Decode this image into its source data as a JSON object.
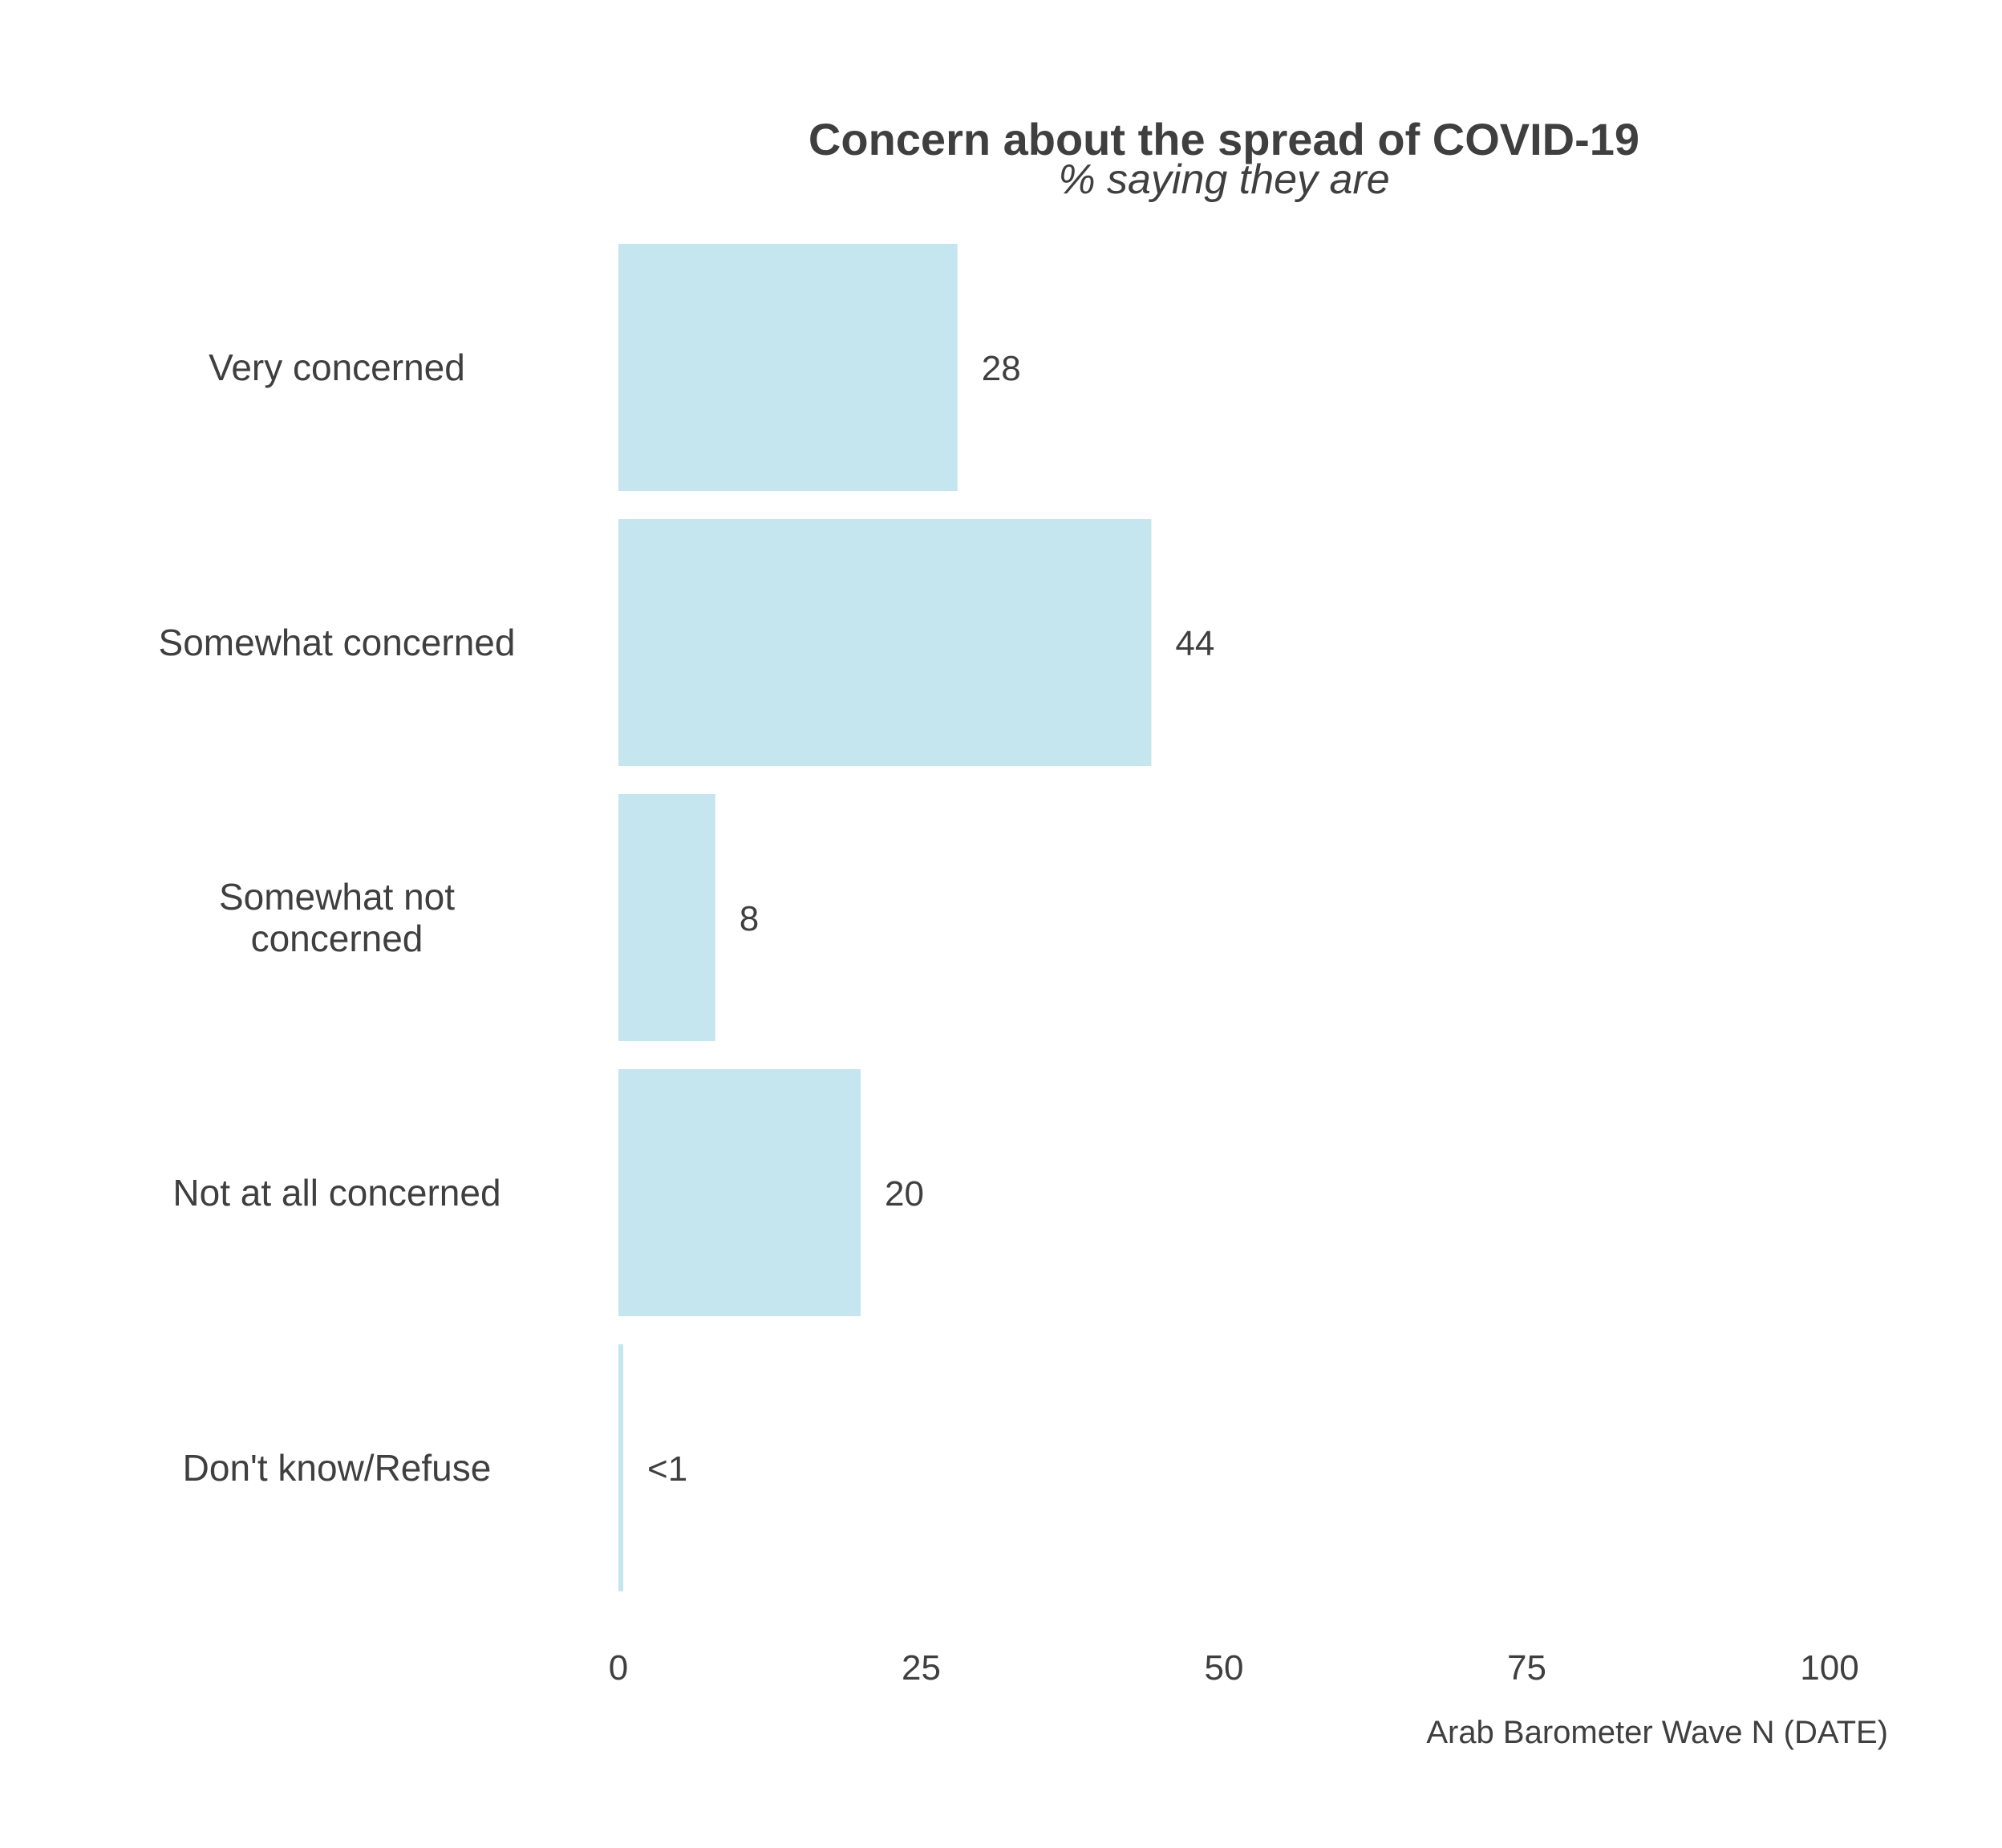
{
  "chart_data": {
    "type": "bar",
    "orientation": "horizontal",
    "title": "Concern about the spread of COVID-19",
    "subtitle": "% saying they are",
    "caption": "Arab Barometer Wave N (DATE)",
    "categories": [
      [
        "Very concerned"
      ],
      [
        "Somewhat concerned"
      ],
      [
        "Somewhat not",
        "concerned"
      ],
      [
        "Not at all concerned"
      ],
      [
        "Don't know/Refuse"
      ]
    ],
    "values": [
      28,
      44,
      8,
      20,
      0.4
    ],
    "data_labels": [
      "28",
      "44",
      "8",
      "20",
      "<1"
    ],
    "xlim": [
      0,
      100
    ],
    "x_ticks": [
      0,
      25,
      50,
      75,
      100
    ],
    "x_tick_labels": [
      "0",
      "25",
      "50",
      "75",
      "100"
    ],
    "grid": false,
    "legend": "none",
    "bar_color": "#c5e5ef",
    "text_color": "#3f3f3f"
  }
}
